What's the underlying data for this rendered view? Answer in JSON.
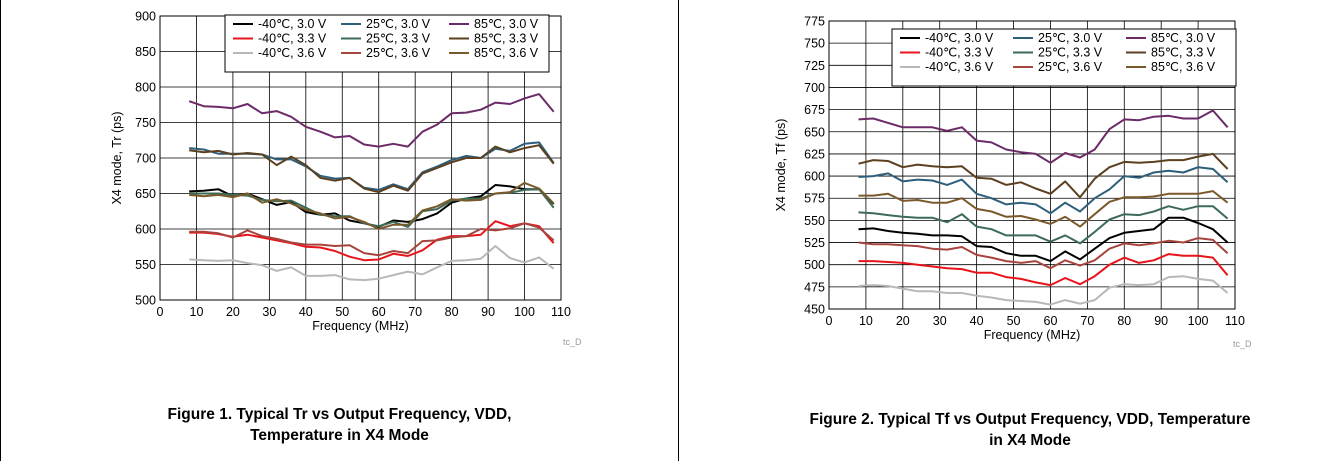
{
  "captions": [
    {
      "line1": "Figure 1. Typical Tr vs Output Frequency, VDD,",
      "line2": "Temperature in X4 Mode"
    },
    {
      "line1": "Figure 2. Typical Tf vs Output Frequency, VDD, Temperature",
      "line2": "in X4 Mode"
    }
  ],
  "chart_data": [
    {
      "type": "line",
      "xlabel": "Frequency (MHz)",
      "ylabel": "X4 mode, Tr (ps)",
      "xlim": [
        0,
        110
      ],
      "ylim": [
        500,
        900
      ],
      "xticks": [
        0,
        10,
        20,
        30,
        40,
        50,
        60,
        70,
        80,
        90,
        100,
        110
      ],
      "yticks": [
        500,
        550,
        600,
        650,
        700,
        750,
        800,
        850,
        900
      ],
      "grid": true,
      "legend_position": "top-right",
      "watermark": "tc_D",
      "x": [
        8,
        12,
        16,
        20,
        24,
        28,
        32,
        36,
        40,
        44,
        48,
        52,
        56,
        60,
        64,
        68,
        72,
        76,
        80,
        84,
        88,
        92,
        96,
        100,
        104,
        108
      ],
      "series": [
        {
          "name": "-40℃, 3.0 V",
          "color": "#000000",
          "values": [
            653,
            654,
            656,
            646,
            650,
            642,
            634,
            638,
            624,
            620,
            622,
            612,
            608,
            603,
            612,
            610,
            614,
            622,
            637,
            643,
            646,
            662,
            660,
            656,
            656,
            635
          ]
        },
        {
          "name": "25℃, 3.0 V",
          "color": "#2e5f7a",
          "values": [
            714,
            712,
            706,
            706,
            706,
            705,
            698,
            698,
            688,
            675,
            671,
            672,
            658,
            655,
            663,
            656,
            680,
            688,
            697,
            703,
            700,
            713,
            710,
            720,
            722,
            693
          ]
        },
        {
          "name": "85℃, 3.0 V",
          "color": "#6b2a68",
          "values": [
            780,
            773,
            772,
            770,
            776,
            763,
            766,
            758,
            744,
            737,
            729,
            731,
            719,
            716,
            720,
            716,
            737,
            747,
            763,
            764,
            768,
            778,
            776,
            784,
            790,
            765
          ]
        },
        {
          "name": "-40℃, 3.3 V",
          "color": "#e8141b",
          "values": [
            595,
            595,
            593,
            589,
            592,
            588,
            584,
            580,
            575,
            574,
            569,
            561,
            556,
            557,
            565,
            562,
            570,
            585,
            590,
            590,
            592,
            611,
            604,
            608,
            604,
            580
          ]
        },
        {
          "name": "25℃, 3.3 V",
          "color": "#3d6b58",
          "values": [
            650,
            650,
            650,
            648,
            647,
            641,
            639,
            640,
            630,
            620,
            618,
            618,
            608,
            604,
            610,
            603,
            625,
            628,
            640,
            643,
            643,
            650,
            651,
            655,
            656,
            630
          ]
        },
        {
          "name": "85℃, 3.3 V",
          "color": "#5c4020",
          "values": [
            711,
            708,
            710,
            705,
            707,
            705,
            690,
            702,
            690,
            672,
            668,
            672,
            657,
            652,
            661,
            654,
            678,
            686,
            694,
            700,
            700,
            716,
            708,
            714,
            718,
            692
          ]
        },
        {
          "name": "-40℃, 3.6 V",
          "color": "#b8b8b8",
          "values": [
            557,
            556,
            555,
            556,
            552,
            549,
            541,
            546,
            534,
            534,
            535,
            529,
            528,
            530,
            535,
            540,
            536,
            546,
            555,
            556,
            558,
            576,
            559,
            553,
            560,
            544
          ]
        },
        {
          "name": "25℃, 3.6 V",
          "color": "#a8443e",
          "values": [
            596,
            596,
            594,
            588,
            598,
            590,
            586,
            581,
            578,
            578,
            576,
            577,
            566,
            563,
            569,
            566,
            583,
            584,
            588,
            590,
            600,
            598,
            601,
            608,
            602,
            584
          ]
        },
        {
          "name": "85℃, 3.6 V",
          "color": "#7a5a2b",
          "values": [
            648,
            646,
            648,
            645,
            650,
            637,
            642,
            636,
            627,
            622,
            615,
            617,
            610,
            600,
            606,
            606,
            626,
            632,
            642,
            640,
            641,
            650,
            652,
            665,
            657,
            636
          ]
        }
      ]
    },
    {
      "type": "line",
      "xlabel": "Frequency (MHz)",
      "ylabel": "X4 mode, Tf (ps)",
      "xlim": [
        0,
        110
      ],
      "ylim": [
        450,
        775
      ],
      "xticks": [
        0,
        10,
        20,
        30,
        40,
        50,
        60,
        70,
        80,
        90,
        100,
        110
      ],
      "yticks": [
        450,
        475,
        500,
        525,
        550,
        575,
        600,
        625,
        650,
        675,
        700,
        725,
        750,
        775
      ],
      "grid": true,
      "legend_position": "top-right",
      "watermark": "tc_D",
      "x": [
        8,
        12,
        16,
        20,
        24,
        28,
        32,
        36,
        40,
        44,
        48,
        52,
        56,
        60,
        64,
        68,
        72,
        76,
        80,
        84,
        88,
        92,
        96,
        100,
        104,
        108
      ],
      "series": [
        {
          "name": "-40℃, 3.0 V",
          "color": "#000000",
          "values": [
            540,
            541,
            538,
            536,
            535,
            533,
            533,
            532,
            521,
            520,
            513,
            510,
            510,
            504,
            515,
            506,
            518,
            530,
            536,
            538,
            540,
            553,
            553,
            547,
            540,
            525
          ]
        },
        {
          "name": "25℃, 3.0 V",
          "color": "#2e5f7a",
          "values": [
            599,
            600,
            603,
            594,
            596,
            595,
            590,
            596,
            580,
            575,
            568,
            570,
            568,
            558,
            570,
            560,
            575,
            585,
            600,
            598,
            604,
            606,
            604,
            610,
            608,
            593
          ]
        },
        {
          "name": "85℃, 3.0 V",
          "color": "#6b2a68",
          "values": [
            664,
            665,
            660,
            655,
            655,
            655,
            651,
            655,
            640,
            638,
            630,
            627,
            625,
            615,
            626,
            621,
            630,
            653,
            664,
            663,
            667,
            668,
            665,
            665,
            674,
            655
          ]
        },
        {
          "name": "-40℃, 3.3 V",
          "color": "#e8141b",
          "values": [
            504,
            504,
            503,
            502,
            500,
            498,
            496,
            495,
            491,
            491,
            486,
            484,
            480,
            477,
            485,
            478,
            487,
            500,
            508,
            502,
            505,
            512,
            510,
            510,
            508,
            488
          ]
        },
        {
          "name": "25℃, 3.3 V",
          "color": "#3d6b58",
          "values": [
            559,
            558,
            556,
            554,
            553,
            553,
            548,
            557,
            543,
            540,
            533,
            533,
            533,
            526,
            533,
            524,
            537,
            551,
            557,
            556,
            560,
            566,
            562,
            566,
            566,
            552
          ]
        },
        {
          "name": "85℃, 3.3 V",
          "color": "#5c4020",
          "values": [
            614,
            618,
            617,
            610,
            613,
            611,
            610,
            611,
            598,
            597,
            590,
            593,
            586,
            580,
            594,
            576,
            597,
            610,
            616,
            615,
            616,
            618,
            618,
            622,
            625,
            608
          ]
        },
        {
          "name": "-40℃, 3.6 V",
          "color": "#b8b8b8",
          "values": [
            476,
            477,
            476,
            473,
            470,
            470,
            468,
            468,
            465,
            463,
            460,
            459,
            458,
            455,
            460,
            456,
            460,
            474,
            478,
            477,
            478,
            486,
            487,
            484,
            482,
            468
          ]
        },
        {
          "name": "25℃, 3.6 V",
          "color": "#a8443e",
          "values": [
            525,
            523,
            523,
            522,
            521,
            518,
            517,
            520,
            511,
            508,
            504,
            502,
            504,
            496,
            505,
            499,
            505,
            518,
            524,
            522,
            524,
            527,
            525,
            530,
            528,
            513
          ]
        },
        {
          "name": "85℃, 3.6 V",
          "color": "#7a5a2b",
          "values": [
            578,
            578,
            580,
            572,
            573,
            570,
            570,
            575,
            563,
            560,
            554,
            555,
            551,
            546,
            554,
            543,
            557,
            571,
            576,
            576,
            577,
            580,
            580,
            580,
            583,
            570
          ]
        }
      ]
    }
  ]
}
